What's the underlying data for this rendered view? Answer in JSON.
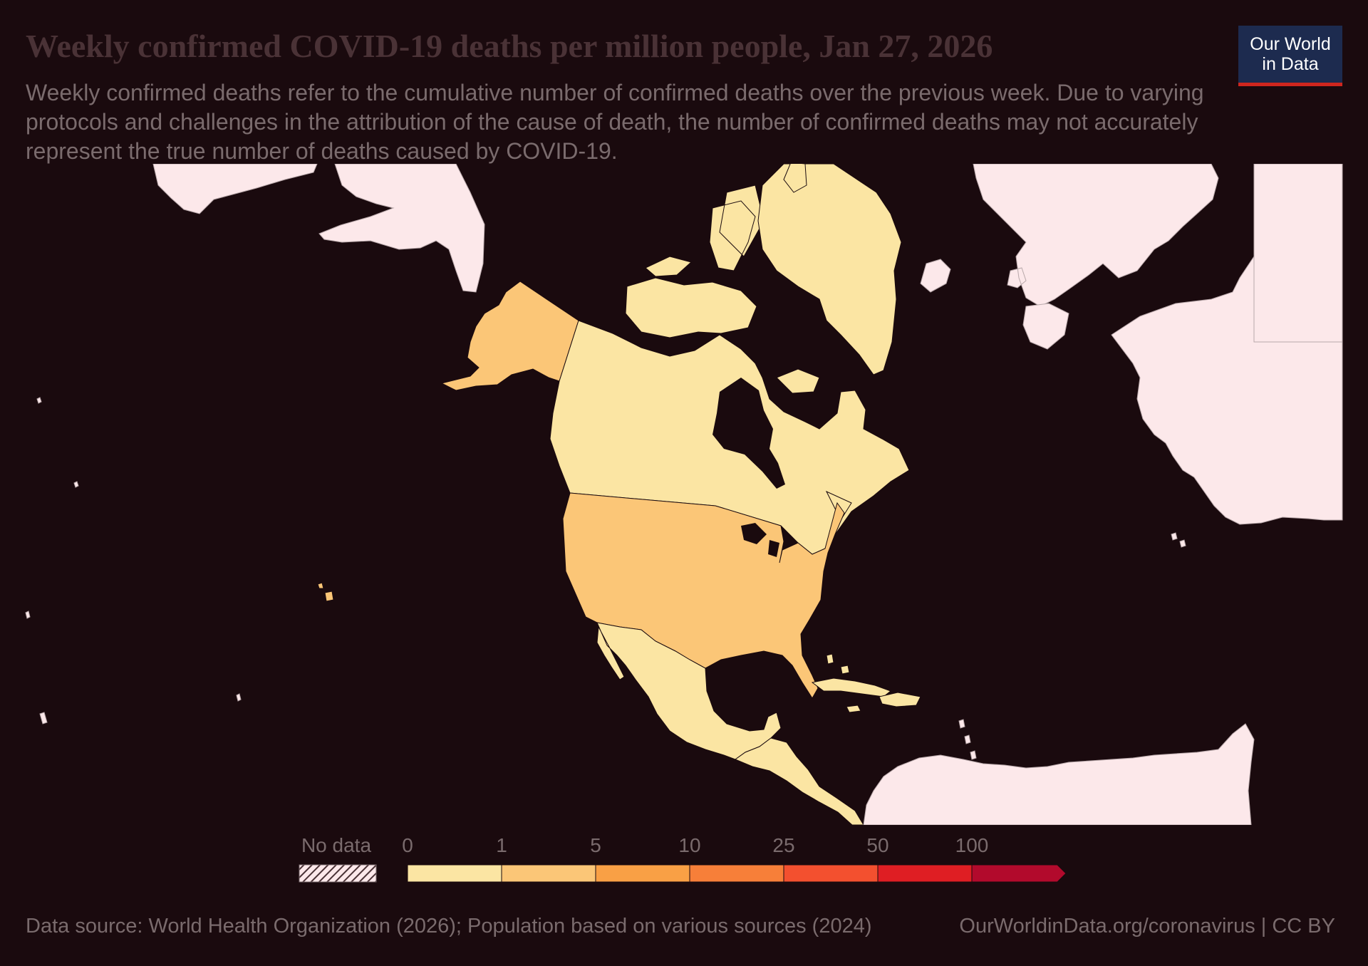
{
  "header": {
    "title": "Weekly confirmed COVID-19 deaths per million people, Jan 27, 2026",
    "subtitle": "Weekly confirmed deaths refer to the cumulative number of confirmed deaths over the previous week. Due to varying protocols and challenges in the attribution of the cause of death, the number of confirmed deaths may not accurately represent the true number of deaths caused by COVID-19."
  },
  "logo": {
    "line1": "Our World",
    "line2": "in Data"
  },
  "legend": {
    "no_data_label": "No data",
    "bins": [
      {
        "label": "0",
        "color": "#fbe5a3"
      },
      {
        "label": "1",
        "color": "#fbc677"
      },
      {
        "label": "5",
        "color": "#f9a045"
      },
      {
        "label": "10",
        "color": "#f77f39"
      },
      {
        "label": "25",
        "color": "#f3502f"
      },
      {
        "label": "50",
        "color": "#df1e23"
      },
      {
        "label": "100",
        "color": "#b20a2c"
      }
    ]
  },
  "map": {
    "no_data_color": "#fce8ea",
    "ocean_color": "#1a0a0e",
    "countries": [
      {
        "name": "Canada",
        "bin": "0-1"
      },
      {
        "name": "Greenland",
        "bin": "0-1"
      },
      {
        "name": "United States",
        "bin": "1-5"
      },
      {
        "name": "Mexico",
        "bin": "0-1"
      },
      {
        "name": "Guatemala",
        "bin": "0-1"
      },
      {
        "name": "Cuba",
        "bin": "0-1"
      }
    ]
  },
  "footer": {
    "source": "Data source: World Health Organization (2026); Population based on various sources (2024)",
    "link": "OurWorldinData.org/coronavirus | CC BY"
  }
}
